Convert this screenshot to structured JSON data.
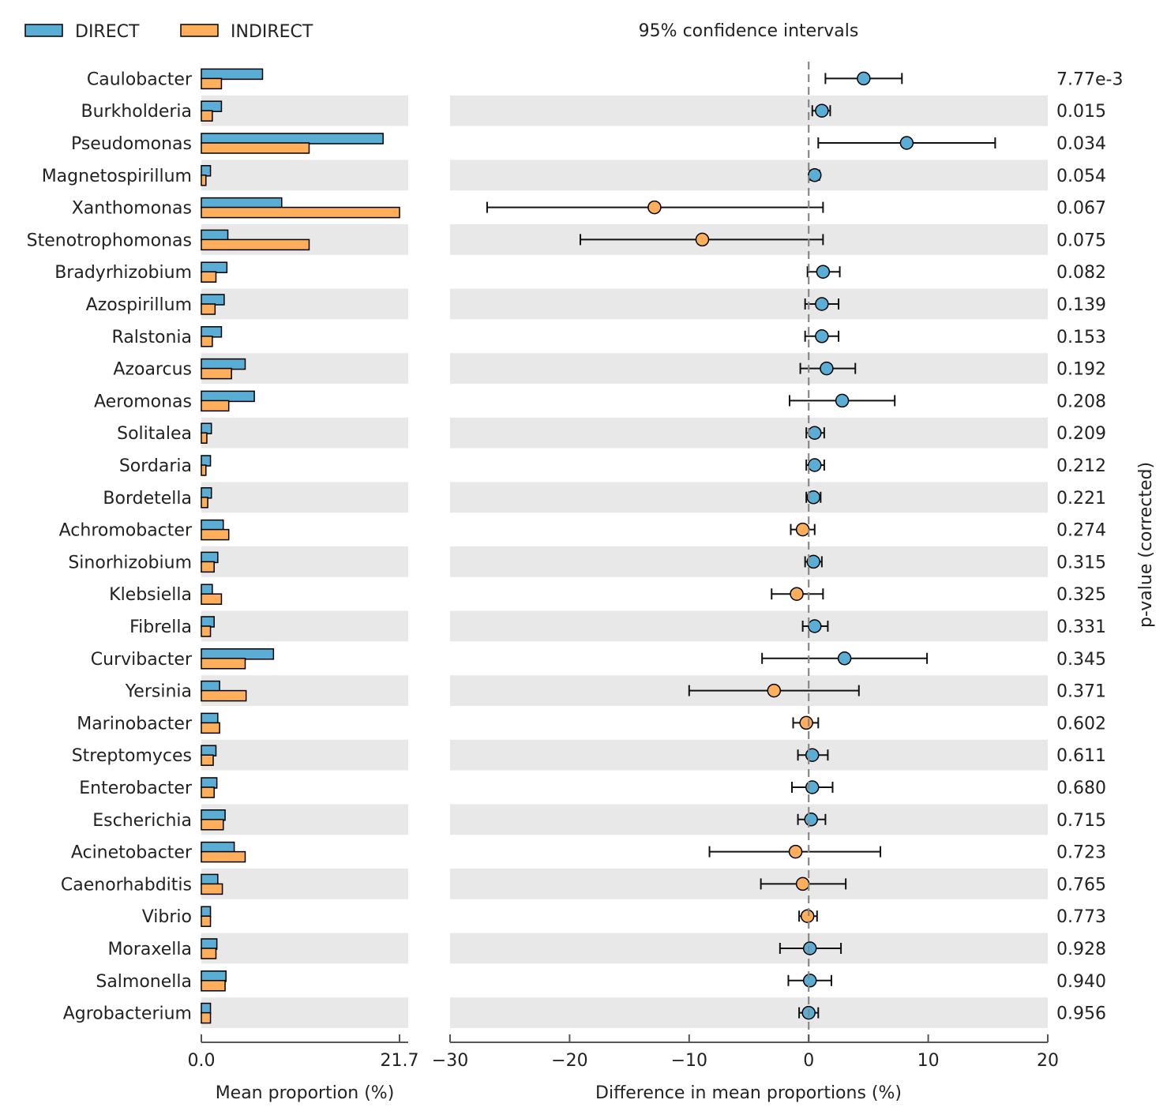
{
  "chart_data": {
    "type": "bar",
    "legend": [
      {
        "name": "DIRECT",
        "color": "#5AADD4"
      },
      {
        "name": "INDIRECT",
        "color": "#FFAE5C"
      }
    ],
    "ci_title": "95% confidence intervals",
    "left_xlabel": "Mean proportion (%)",
    "right_xlabel": "Difference in mean proportions (%)",
    "right_ylabel": "p-value (corrected)",
    "left_xlim": [
      0,
      21.7
    ],
    "left_ticks": [
      "0.0",
      "21.7"
    ],
    "right_xlim": [
      -30,
      20
    ],
    "right_ticks": [
      {
        "value": -30,
        "label": "−30"
      },
      {
        "value": -20,
        "label": "−20"
      },
      {
        "value": -10,
        "label": "−10"
      },
      {
        "value": 0,
        "label": "0"
      },
      {
        "value": 10,
        "label": "10"
      },
      {
        "value": 20,
        "label": "20"
      }
    ],
    "categories": [
      "Caulobacter",
      "Burkholderia",
      "Pseudomonas",
      "Magnetospirillum",
      "Xanthomonas",
      "Stenotrophomonas",
      "Bradyrhizobium",
      "Azospirillum",
      "Ralstonia",
      "Azoarcus",
      "Aeromonas",
      "Solitalea",
      "Sordaria",
      "Bordetella",
      "Achromobacter",
      "Sinorhizobium",
      "Klebsiella",
      "Fibrella",
      "Curvibacter",
      "Yersinia",
      "Marinobacter",
      "Streptomyces",
      "Enterobacter",
      "Escherichia",
      "Acinetobacter",
      "Caenorhabditis",
      "Vibrio",
      "Moraxella",
      "Salmonella",
      "Agrobacterium"
    ],
    "series": [
      {
        "name": "DIRECT",
        "values": [
          6.7,
          2.2,
          19.9,
          1.0,
          8.8,
          2.9,
          2.8,
          2.5,
          2.2,
          4.8,
          5.8,
          1.1,
          1.0,
          1.1,
          2.4,
          1.8,
          1.2,
          1.4,
          7.9,
          2.0,
          1.8,
          1.6,
          1.7,
          2.6,
          3.6,
          1.8,
          1.0,
          1.7,
          2.7,
          1.0
        ]
      },
      {
        "name": "INDIRECT",
        "values": [
          2.2,
          1.2,
          11.8,
          0.5,
          21.7,
          11.8,
          1.6,
          1.5,
          1.2,
          3.3,
          3.0,
          0.6,
          0.5,
          0.7,
          3.0,
          1.4,
          2.2,
          1.0,
          4.8,
          4.9,
          2.0,
          1.3,
          1.4,
          2.4,
          4.8,
          2.3,
          1.0,
          1.6,
          2.6,
          1.0
        ]
      }
    ],
    "differences": [
      {
        "mean": 4.6,
        "low": 1.4,
        "high": 7.8,
        "group": "DIRECT"
      },
      {
        "mean": 1.1,
        "low": 0.3,
        "high": 1.8,
        "group": "DIRECT"
      },
      {
        "mean": 8.2,
        "low": 0.8,
        "high": 15.6,
        "group": "DIRECT"
      },
      {
        "mean": 0.5,
        "low": 0.1,
        "high": 0.9,
        "group": "DIRECT"
      },
      {
        "mean": -12.9,
        "low": -26.9,
        "high": 1.2,
        "group": "INDIRECT"
      },
      {
        "mean": -8.9,
        "low": -19.1,
        "high": 1.2,
        "group": "INDIRECT"
      },
      {
        "mean": 1.2,
        "low": -0.1,
        "high": 2.6,
        "group": "DIRECT"
      },
      {
        "mean": 1.1,
        "low": -0.3,
        "high": 2.5,
        "group": "DIRECT"
      },
      {
        "mean": 1.1,
        "low": -0.3,
        "high": 2.5,
        "group": "DIRECT"
      },
      {
        "mean": 1.5,
        "low": -0.7,
        "high": 3.9,
        "group": "DIRECT"
      },
      {
        "mean": 2.8,
        "low": -1.6,
        "high": 7.2,
        "group": "DIRECT"
      },
      {
        "mean": 0.5,
        "low": -0.2,
        "high": 1.3,
        "group": "DIRECT"
      },
      {
        "mean": 0.5,
        "low": -0.2,
        "high": 1.3,
        "group": "DIRECT"
      },
      {
        "mean": 0.4,
        "low": -0.2,
        "high": 1.0,
        "group": "DIRECT"
      },
      {
        "mean": -0.5,
        "low": -1.5,
        "high": 0.5,
        "group": "INDIRECT"
      },
      {
        "mean": 0.4,
        "low": -0.3,
        "high": 1.1,
        "group": "DIRECT"
      },
      {
        "mean": -1.0,
        "low": -3.1,
        "high": 1.2,
        "group": "INDIRECT"
      },
      {
        "mean": 0.5,
        "low": -0.5,
        "high": 1.6,
        "group": "DIRECT"
      },
      {
        "mean": 3.0,
        "low": -3.9,
        "high": 9.9,
        "group": "DIRECT"
      },
      {
        "mean": -2.9,
        "low": -10.0,
        "high": 4.2,
        "group": "INDIRECT"
      },
      {
        "mean": -0.2,
        "low": -1.3,
        "high": 0.8,
        "group": "INDIRECT"
      },
      {
        "mean": 0.3,
        "low": -0.9,
        "high": 1.6,
        "group": "DIRECT"
      },
      {
        "mean": 0.3,
        "low": -1.4,
        "high": 2.0,
        "group": "DIRECT"
      },
      {
        "mean": 0.2,
        "low": -0.9,
        "high": 1.4,
        "group": "DIRECT"
      },
      {
        "mean": -1.1,
        "low": -8.3,
        "high": 6.0,
        "group": "INDIRECT"
      },
      {
        "mean": -0.5,
        "low": -4.0,
        "high": 3.1,
        "group": "INDIRECT"
      },
      {
        "mean": -0.1,
        "low": -0.8,
        "high": 0.7,
        "group": "INDIRECT"
      },
      {
        "mean": 0.1,
        "low": -2.4,
        "high": 2.7,
        "group": "DIRECT"
      },
      {
        "mean": 0.1,
        "low": -1.7,
        "high": 1.9,
        "group": "DIRECT"
      },
      {
        "mean": 0.0,
        "low": -0.8,
        "high": 0.8,
        "group": "DIRECT"
      }
    ],
    "p_values": [
      "7.77e-3",
      "0.015",
      "0.034",
      "0.054",
      "0.067",
      "0.075",
      "0.082",
      "0.139",
      "0.153",
      "0.192",
      "0.208",
      "0.209",
      "0.212",
      "0.221",
      "0.274",
      "0.315",
      "0.325",
      "0.331",
      "0.345",
      "0.371",
      "0.602",
      "0.611",
      "0.680",
      "0.715",
      "0.723",
      "0.765",
      "0.773",
      "0.928",
      "0.940",
      "0.956"
    ]
  }
}
